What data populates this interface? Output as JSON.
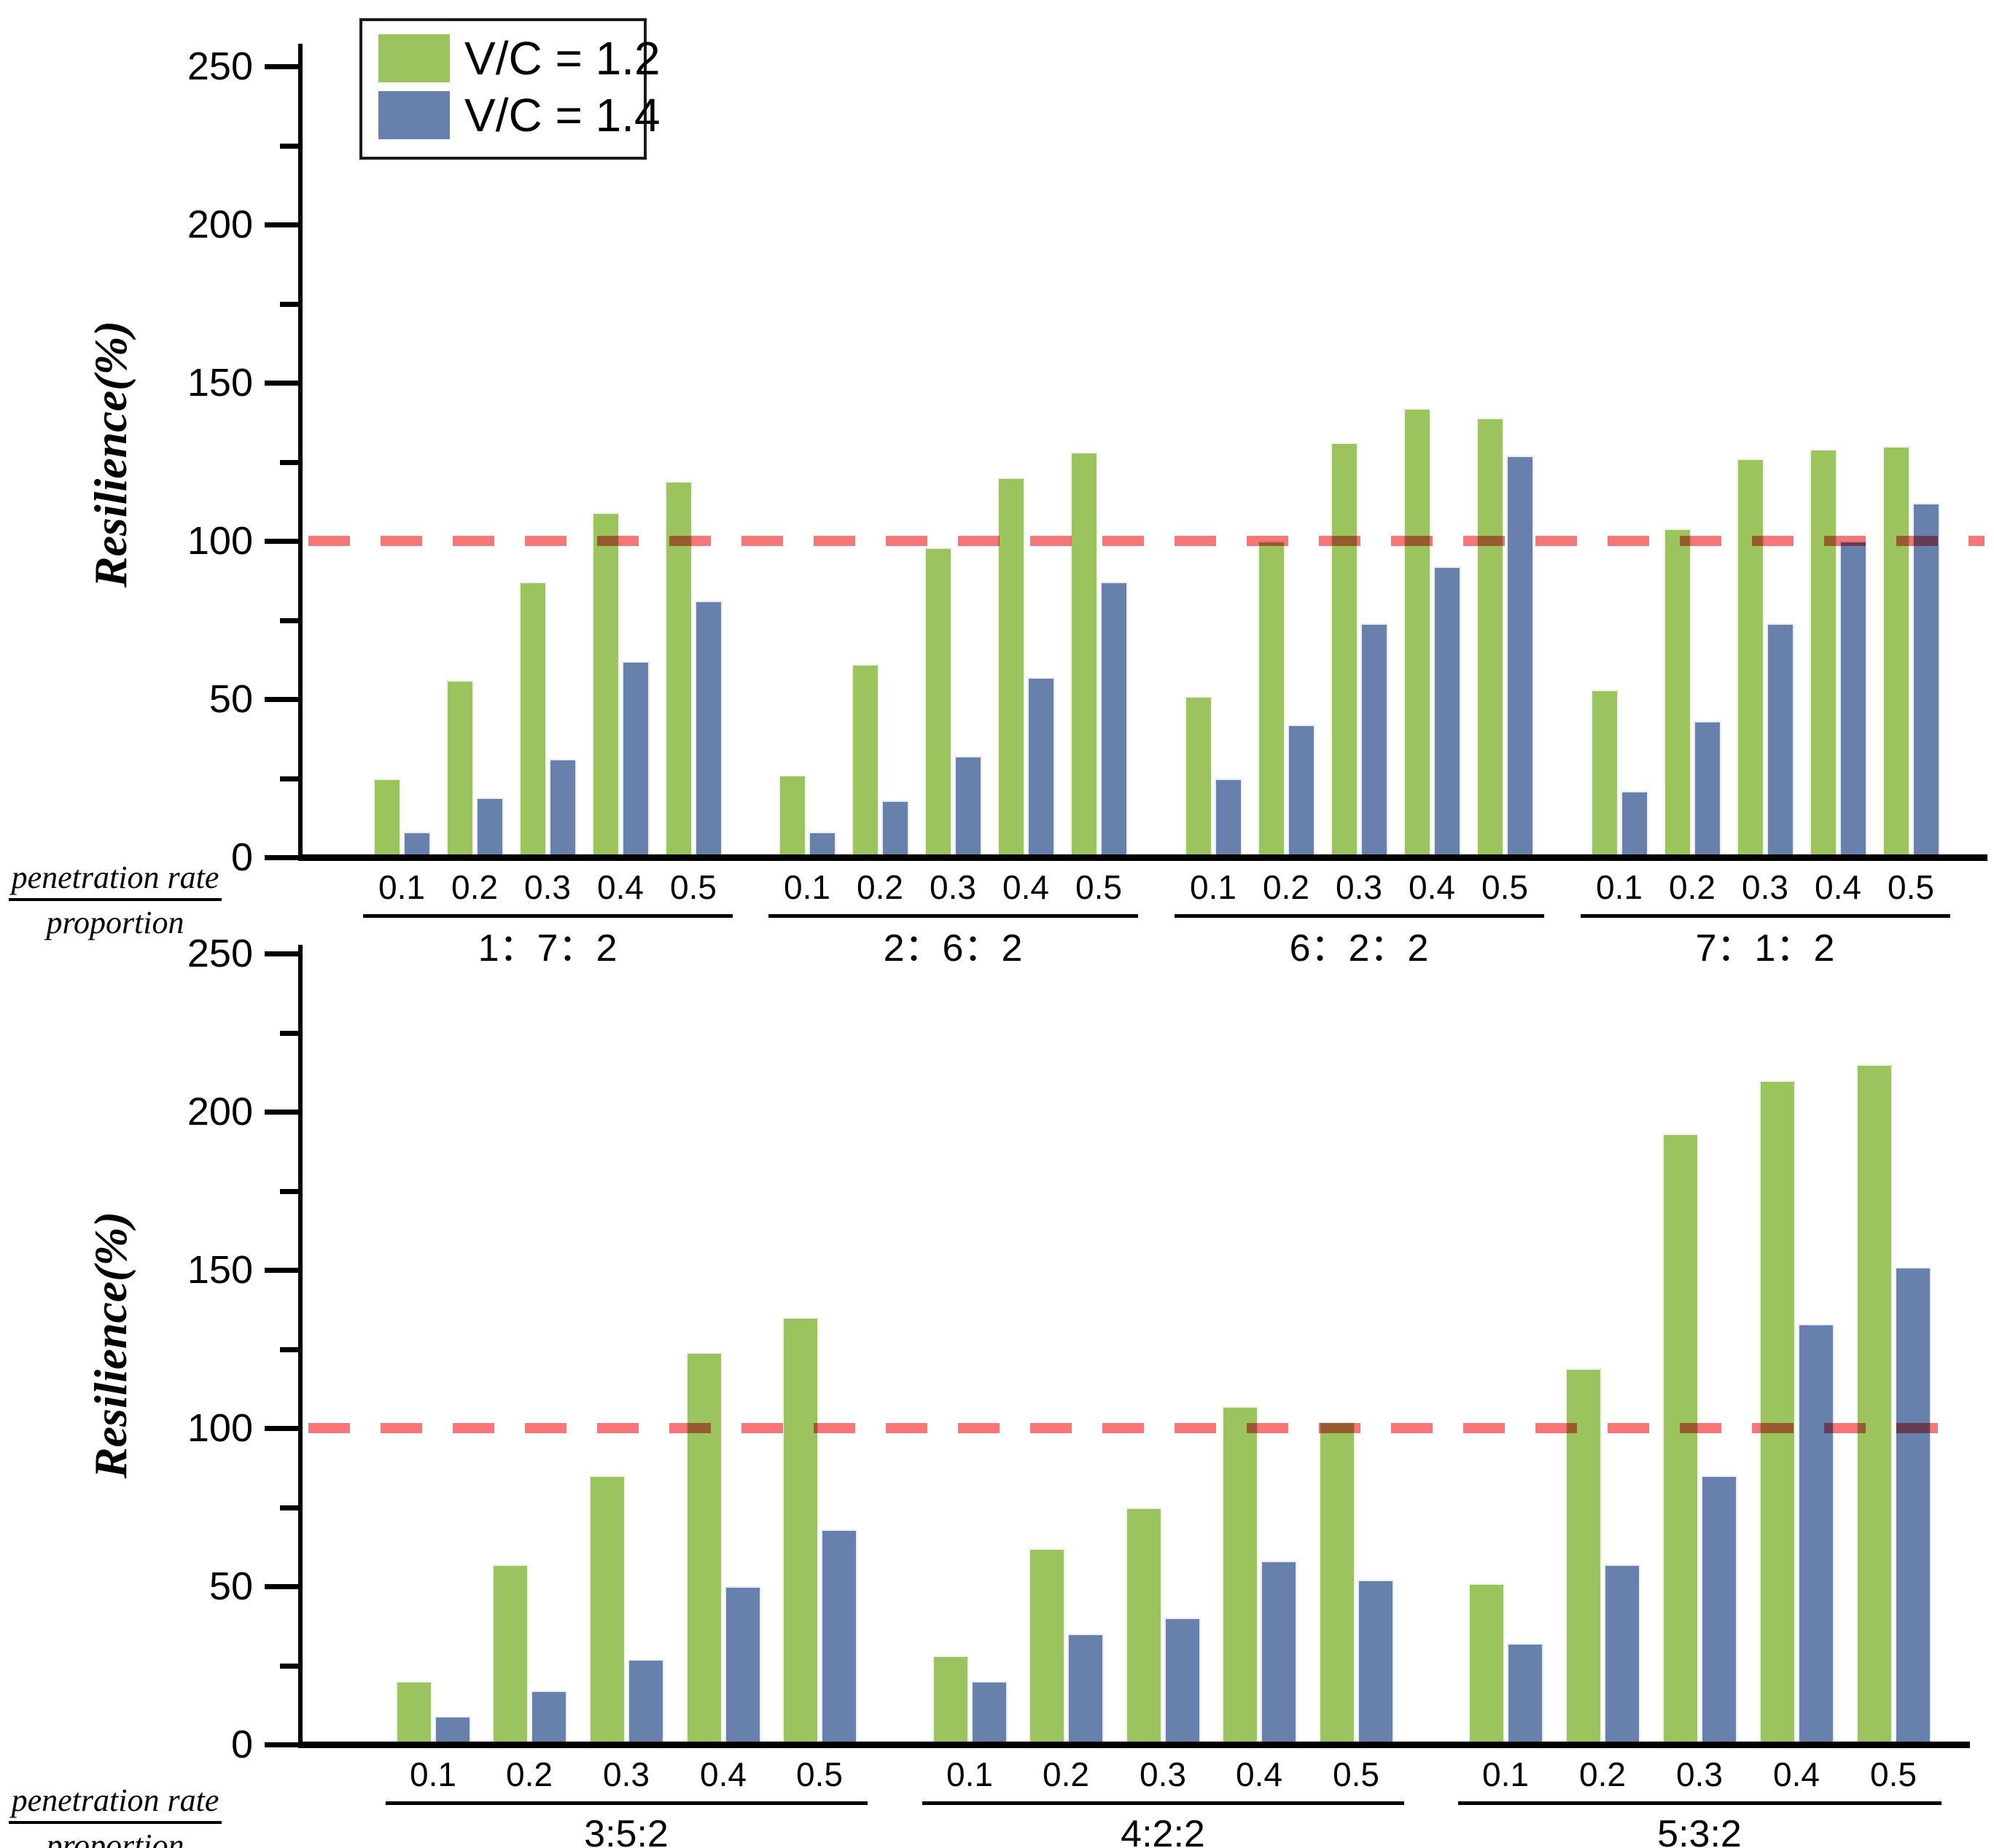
{
  "legend": {
    "entries": [
      {
        "label": "V/C = 1.2",
        "color": "#9cc45e"
      },
      {
        "label": "V/C = 1.4",
        "color": "#6880ac"
      }
    ]
  },
  "axis_corner_label": {
    "numerator": "penetration rate",
    "denominator": "proportion"
  },
  "reference_line_color": "#f76b6d",
  "chart_data": {
    "type": "bar",
    "title": "",
    "xlabel": "penetration rate / proportion",
    "ylabel": "Resilience(%)",
    "legend_position": "top-left",
    "grid": false,
    "series_names": [
      "V/C = 1.2",
      "V/C = 1.4"
    ],
    "panels": [
      {
        "name": "top",
        "ylabel": "Resilience(%)",
        "ylim": [
          0,
          250
        ],
        "ytick_major_step": 50,
        "ytick_minor_step": 25,
        "ytick_labels": [
          "0",
          "50",
          "100",
          "150",
          "200",
          "250"
        ],
        "reference_value": 100,
        "x_ticks": [
          "0.1",
          "0.2",
          "0.3",
          "0.4",
          "0.5"
        ],
        "groups": [
          {
            "label": "1：7：2",
            "vc12": [
              25,
              56,
              87,
              109,
              119
            ],
            "vc14": [
              8,
              19,
              31,
              62,
              81
            ]
          },
          {
            "label": "2：6：2",
            "vc12": [
              26,
              61,
              98,
              120,
              128
            ],
            "vc14": [
              8,
              18,
              32,
              57,
              87
            ]
          },
          {
            "label": "6：2：2",
            "vc12": [
              51,
              100,
              131,
              142,
              139
            ],
            "vc14": [
              25,
              42,
              74,
              92,
              127
            ]
          },
          {
            "label": "7：1：2",
            "vc12": [
              53,
              104,
              126,
              129,
              130
            ],
            "vc14": [
              21,
              43,
              74,
              100,
              112
            ]
          }
        ]
      },
      {
        "name": "bottom",
        "ylabel": "Resilience(%)",
        "ylim": [
          0,
          250
        ],
        "ytick_major_step": 50,
        "ytick_minor_step": 25,
        "ytick_labels": [
          "0",
          "50",
          "100",
          "150",
          "200",
          "250"
        ],
        "reference_value": 100,
        "x_ticks": [
          "0.1",
          "0.2",
          "0.3",
          "0.4",
          "0.5"
        ],
        "groups": [
          {
            "label": "3:5:2",
            "vc12": [
              20,
              57,
              85,
              124,
              135
            ],
            "vc14": [
              9,
              17,
              27,
              50,
              68
            ]
          },
          {
            "label": "4:2:2",
            "vc12": [
              28,
              62,
              75,
              107,
              102
            ],
            "vc14": [
              20,
              35,
              40,
              58,
              52
            ]
          },
          {
            "label": "5:3:2",
            "vc12": [
              51,
              119,
              193,
              210,
              215
            ],
            "vc14": [
              32,
              57,
              85,
              133,
              151
            ]
          }
        ]
      }
    ]
  }
}
